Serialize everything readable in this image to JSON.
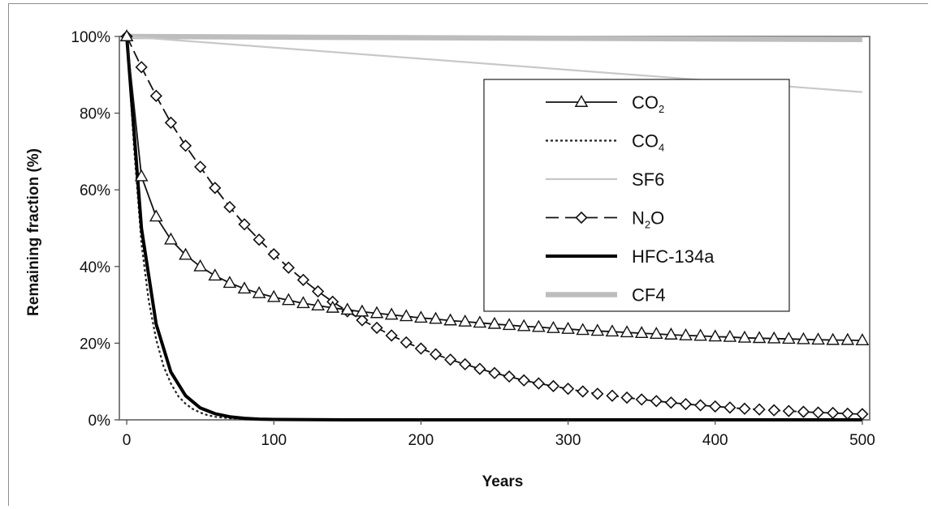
{
  "chart_data": {
    "type": "line",
    "xlabel": "Years",
    "ylabel": "Remaining fraction (%)",
    "xlim": [
      -5,
      505
    ],
    "ylim": [
      0,
      100
    ],
    "x_ticks": [
      0,
      100,
      200,
      300,
      400,
      500
    ],
    "y_ticks": [
      0,
      20,
      40,
      60,
      80,
      100
    ],
    "y_tick_labels": [
      "0%",
      "20%",
      "40%",
      "60%",
      "80%",
      "100%"
    ],
    "legend_position": "top-right",
    "grid": false,
    "series": [
      {
        "key": "co2",
        "name": "CO",
        "name_sub": "2",
        "color": "#111111",
        "style": "solid-triangle",
        "x": [
          0,
          10,
          20,
          30,
          40,
          50,
          60,
          70,
          80,
          90,
          100,
          110,
          120,
          130,
          140,
          150,
          160,
          170,
          180,
          190,
          200,
          210,
          220,
          230,
          240,
          250,
          260,
          270,
          280,
          290,
          300,
          310,
          320,
          330,
          340,
          350,
          360,
          370,
          380,
          390,
          400,
          410,
          420,
          430,
          440,
          450,
          460,
          470,
          480,
          490,
          500
        ],
        "y": [
          100,
          63.5,
          53.0,
          47.0,
          43.0,
          40.0,
          37.6,
          35.7,
          34.2,
          33.0,
          32.0,
          31.2,
          30.4,
          29.8,
          29.2,
          28.7,
          28.2,
          27.8,
          27.4,
          27.0,
          26.6,
          26.3,
          25.9,
          25.6,
          25.3,
          25.0,
          24.7,
          24.4,
          24.2,
          23.9,
          23.7,
          23.4,
          23.2,
          23.0,
          22.8,
          22.6,
          22.4,
          22.2,
          22.0,
          21.9,
          21.7,
          21.6,
          21.4,
          21.3,
          21.2,
          21.1,
          21.0,
          20.9,
          20.8,
          20.8,
          20.7
        ]
      },
      {
        "key": "ch4",
        "name": "CO",
        "name_sub": "4",
        "color": "#222222",
        "style": "dotted",
        "x": [
          0,
          5,
          10,
          15,
          20,
          25,
          30,
          35,
          40,
          45,
          50,
          55,
          60,
          70,
          80,
          90,
          100,
          150,
          200,
          300,
          400,
          500
        ],
        "y": [
          100,
          71,
          46,
          31,
          21,
          14,
          9.5,
          6.2,
          4.2,
          2.8,
          1.9,
          1.2,
          0.8,
          0.4,
          0.2,
          0.1,
          0.05,
          0,
          0,
          0,
          0,
          0
        ]
      },
      {
        "key": "sf6",
        "name": "SF6",
        "name_sub": "",
        "color": "#c8c8c8",
        "style": "thin-gray",
        "x": [
          0,
          500
        ],
        "y": [
          100,
          85.5
        ]
      },
      {
        "key": "n2o",
        "name": "N",
        "name_sub": "2",
        "name_after": "O",
        "color": "#111111",
        "style": "dashed-diamond",
        "x": [
          0,
          10,
          20,
          30,
          40,
          50,
          60,
          70,
          80,
          90,
          100,
          110,
          120,
          130,
          140,
          150,
          160,
          170,
          180,
          190,
          200,
          210,
          220,
          230,
          240,
          250,
          260,
          270,
          280,
          290,
          300,
          310,
          320,
          330,
          340,
          350,
          360,
          370,
          380,
          390,
          400,
          410,
          420,
          430,
          440,
          450,
          460,
          470,
          480,
          490,
          500
        ],
        "y": [
          100,
          92,
          84.5,
          77.5,
          71.5,
          66.0,
          60.5,
          55.5,
          51.0,
          47.0,
          43.2,
          39.7,
          36.5,
          33.5,
          30.8,
          28.3,
          26.0,
          24.0,
          22.0,
          20.2,
          18.6,
          17.1,
          15.7,
          14.5,
          13.3,
          12.2,
          11.3,
          10.3,
          9.5,
          8.8,
          8.1,
          7.4,
          6.8,
          6.3,
          5.8,
          5.3,
          4.9,
          4.5,
          4.1,
          3.8,
          3.5,
          3.2,
          2.9,
          2.7,
          2.5,
          2.3,
          2.1,
          1.9,
          1.8,
          1.6,
          1.5
        ]
      },
      {
        "key": "hfc134a",
        "name": "HFC-134a",
        "name_sub": "",
        "color": "#000000",
        "style": "thick-black",
        "x": [
          0,
          10,
          20,
          30,
          40,
          50,
          60,
          70,
          80,
          90,
          100,
          150,
          200,
          300,
          400,
          500
        ],
        "y": [
          100,
          50,
          25,
          12.5,
          6.3,
          3.1,
          1.6,
          0.8,
          0.4,
          0.2,
          0.1,
          0,
          0,
          0,
          0,
          0
        ]
      },
      {
        "key": "cf4",
        "name": "CF4",
        "name_sub": "",
        "color": "#bdbdbd",
        "style": "thick-gray",
        "x": [
          0,
          500
        ],
        "y": [
          100,
          99.2
        ]
      }
    ]
  }
}
